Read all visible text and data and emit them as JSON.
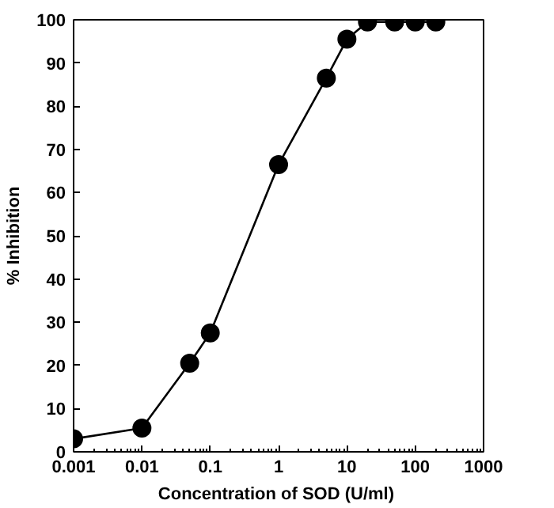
{
  "chart_data": {
    "type": "line",
    "xlabel": "Concentration of SOD  (U/ml)",
    "ylabel": "% Inhibition",
    "log": "x",
    "marker": "circle",
    "line_style": "solid",
    "grid": false,
    "x": [
      0.001,
      0.01,
      0.05,
      0.1,
      1,
      5,
      10,
      20,
      50,
      100,
      200
    ],
    "series": [
      {
        "color": "#000000",
        "values": [
          3,
          5.5,
          20.5,
          27.5,
          66.5,
          86.5,
          95.5,
          99.5,
          99.5,
          99.5,
          99.5
        ]
      }
    ],
    "xlim": [
      0.001,
      1000
    ],
    "ylim": [
      0,
      100
    ],
    "xticks": [
      0.001,
      0.01,
      0.1,
      1,
      10,
      100,
      1000
    ],
    "yticks": [
      0,
      10,
      20,
      30,
      40,
      50,
      60,
      70,
      80,
      90,
      100
    ]
  }
}
